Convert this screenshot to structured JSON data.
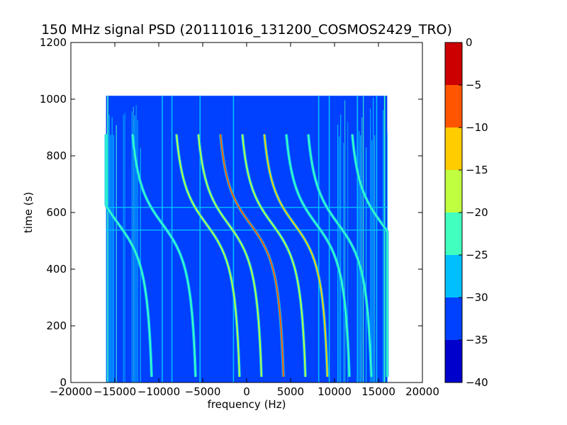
{
  "chart_data": {
    "type": "heatmap",
    "title": "150 MHz signal PSD (20111016_131200_COSMOS2429_TRO)",
    "xlabel": "frequency (Hz)",
    "ylabel": "time (s)",
    "xlim": [
      -20000,
      20000
    ],
    "ylim": [
      0,
      1200
    ],
    "xticks": [
      "−20000",
      "−15000",
      "−10000",
      "−5000",
      "0",
      "5000",
      "10000",
      "15000",
      "20000"
    ],
    "xtick_values": [
      -20000,
      -15000,
      -10000,
      -5000,
      0,
      5000,
      10000,
      15000,
      20000
    ],
    "yticks": [
      "0",
      "200",
      "400",
      "600",
      "800",
      "1000",
      "1200"
    ],
    "ytick_values": [
      0,
      200,
      400,
      600,
      800,
      1000,
      1200
    ],
    "data_extent": {
      "freq_min": -16000,
      "freq_max": 16000,
      "time_min": 0,
      "time_max": 1012
    },
    "background_level": -33,
    "colorbar": {
      "levels": [
        -40,
        -35,
        -30,
        -25,
        -20,
        -15,
        -10,
        -5,
        0
      ],
      "labels": [
        "−40",
        "−35",
        "−30",
        "−25",
        "−20",
        "−15",
        "−10",
        "−5",
        "0"
      ],
      "colors": [
        "#0000cc",
        "#0040ff",
        "#00bfff",
        "#40ffbf",
        "#bfff40",
        "#ffcc00",
        "#ff5500",
        "#cc0000"
      ]
    },
    "doppler_traces": [
      {
        "offset_hz": -15000,
        "peak_db": -21
      },
      {
        "offset_hz": -10000,
        "peak_db": -24
      },
      {
        "offset_hz": -5000,
        "peak_db": -17
      },
      {
        "offset_hz": -2500,
        "peak_db": -16
      },
      {
        "offset_hz": 0,
        "peak_db": -6
      },
      {
        "offset_hz": 2500,
        "peak_db": -17
      },
      {
        "offset_hz": 5000,
        "peak_db": -15
      },
      {
        "offset_hz": 7500,
        "peak_db": -21
      },
      {
        "offset_hz": 10000,
        "peak_db": -25
      },
      {
        "offset_hz": 15000,
        "peak_db": -21
      }
    ],
    "doppler_shape": {
      "center_time_s": 560,
      "amplitude_hz": 2800,
      "scale_s": 120,
      "shift_hz": 400,
      "t_start_s": 20,
      "t_end_s": 880
    },
    "vertical_lines": [
      {
        "freq_hz": -15800,
        "level_db": -22
      },
      {
        "freq_hz": -9600,
        "level_db": -26
      },
      {
        "freq_hz": -8500,
        "level_db": -27
      },
      {
        "freq_hz": -5300,
        "level_db": -26
      },
      {
        "freq_hz": -1500,
        "level_db": -27
      },
      {
        "freq_hz": 8200,
        "level_db": -26
      },
      {
        "freq_hz": 9400,
        "level_db": -27
      },
      {
        "freq_hz": 12600,
        "level_db": -26
      },
      {
        "freq_hz": 14800,
        "level_db": -27
      },
      {
        "freq_hz": 15700,
        "level_db": -22
      }
    ],
    "horizontal_lines": [
      {
        "time_s": 618,
        "level_db": -26
      },
      {
        "time_s": 538,
        "level_db": -27
      }
    ],
    "noisy_band_left_hz": [
      -16000,
      -12000
    ],
    "noisy_band_right_hz": [
      10000,
      16000
    ],
    "grid": false,
    "legend": "none"
  }
}
